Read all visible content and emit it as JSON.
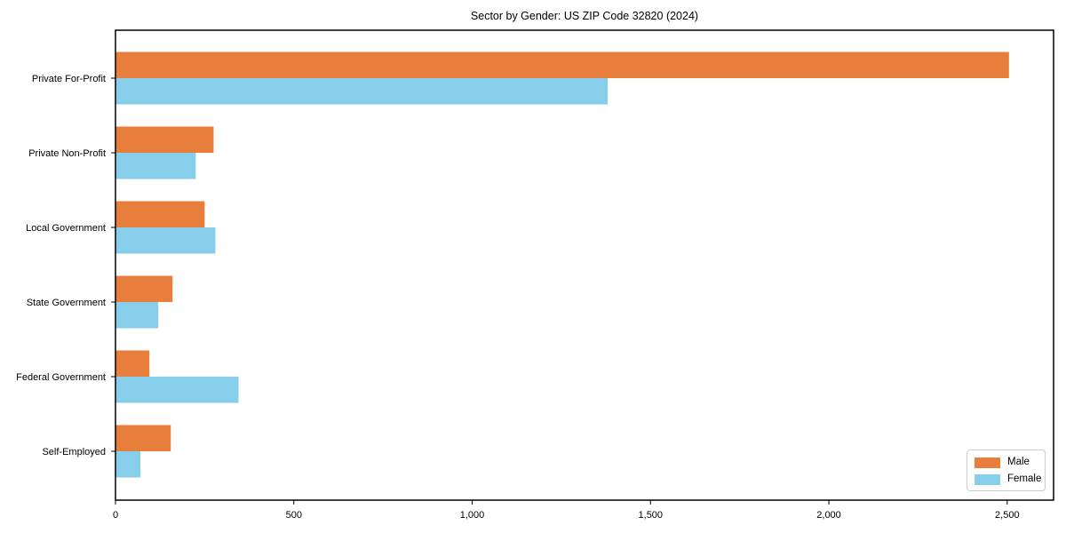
{
  "chart_data": {
    "type": "bar",
    "orientation": "horizontal",
    "title": "Sector by Gender: US ZIP Code 32820 (2024)",
    "categories": [
      "Private For-Profit",
      "Private Non-Profit",
      "Local Government",
      "State Government",
      "Federal Government",
      "Self-Employed"
    ],
    "series": [
      {
        "name": "Male",
        "color": "#E87E3C",
        "values": [
          2505,
          275,
          250,
          160,
          95,
          155
        ]
      },
      {
        "name": "Female",
        "color": "#87CEEB",
        "values": [
          1380,
          225,
          280,
          120,
          345,
          70
        ]
      }
    ],
    "xlabel": "",
    "ylabel": "",
    "xlim": [
      0,
      2630
    ],
    "x_ticks": [
      0,
      500,
      1000,
      1500,
      2000,
      2500
    ],
    "x_tick_labels": [
      "0",
      "500",
      "1,000",
      "1,500",
      "2,000",
      "2,500"
    ],
    "grid": false,
    "legend": {
      "position": "lower right",
      "entries": [
        "Male",
        "Female"
      ]
    }
  },
  "colors": {
    "axis": "#000000",
    "background": "#ffffff",
    "legend_border": "#cccccc",
    "text": "#000000"
  }
}
